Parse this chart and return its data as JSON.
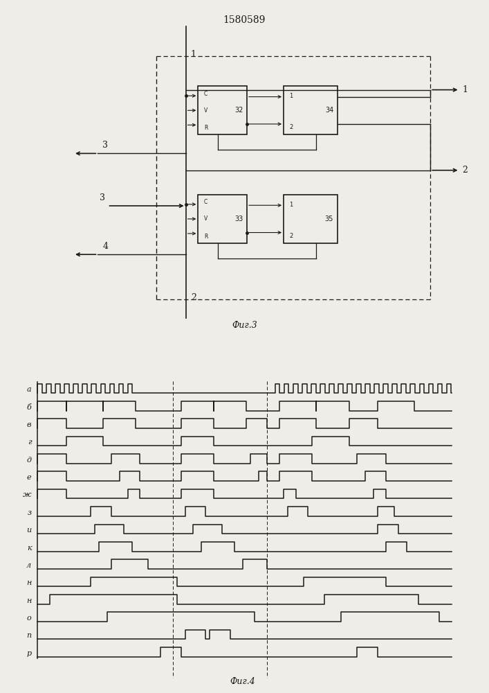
{
  "title": "1580589",
  "fig3_caption": "Фиг.3",
  "fig4_caption": "Фиг.4",
  "bg_color": "#f0ede8",
  "line_color": "#1a1a1a",
  "channel_labels": [
    "а",
    "б",
    "в",
    "г",
    "д",
    "е",
    "ж",
    "з",
    "и",
    "к",
    "л",
    "н",
    "н",
    "о",
    "п",
    "р"
  ],
  "total_time": 10.0
}
